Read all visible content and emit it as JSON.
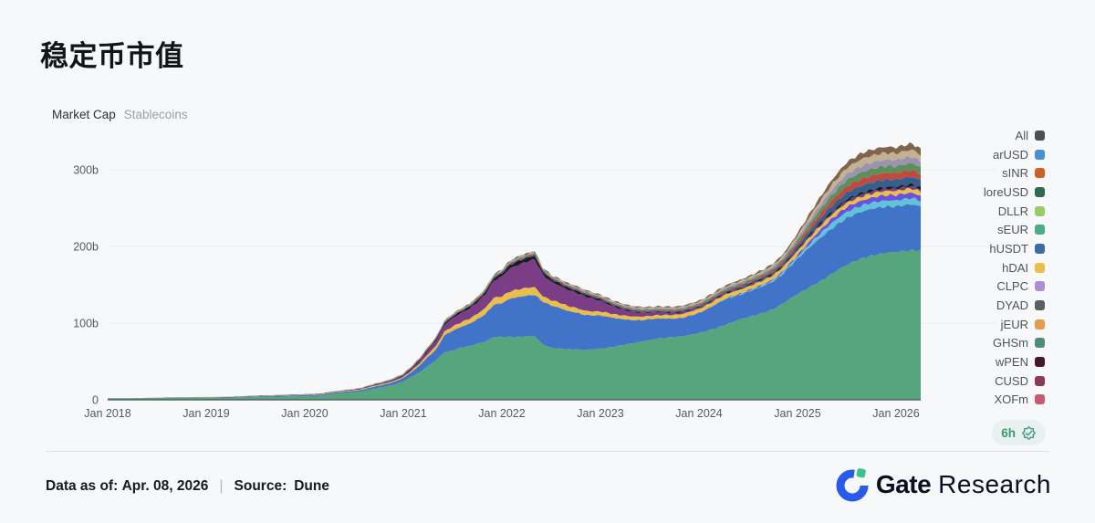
{
  "page": {
    "title": "稳定币市值"
  },
  "chart_header": {
    "primary": "Market Cap",
    "secondary": "Stablecoins"
  },
  "refresh_badge": {
    "label": "6h",
    "icon": "verified-check-icon",
    "color": "#3d9970"
  },
  "legend": {
    "items": [
      {
        "label": "All",
        "color": "#4a4f54"
      },
      {
        "label": "arUSD",
        "color": "#4a8fd4"
      },
      {
        "label": "sINR",
        "color": "#cd5f28"
      },
      {
        "label": "loreUSD",
        "color": "#2e6b4f"
      },
      {
        "label": "DLLR",
        "color": "#97cd68"
      },
      {
        "label": "sEUR",
        "color": "#47ad85"
      },
      {
        "label": "hUSDT",
        "color": "#3a6ca6"
      },
      {
        "label": "hDAI",
        "color": "#e9bf4a"
      },
      {
        "label": "CLPC",
        "color": "#af8cd4"
      },
      {
        "label": "DYAD",
        "color": "#5b5f63"
      },
      {
        "label": "jEUR",
        "color": "#e59a4d"
      },
      {
        "label": "GHSm",
        "color": "#4e8d77"
      },
      {
        "label": "wPEN",
        "color": "#45182c"
      },
      {
        "label": "CUSD",
        "color": "#8e3a55"
      },
      {
        "label": "XOFm",
        "color": "#c75b72"
      }
    ]
  },
  "chart_data": {
    "type": "area",
    "subtype": "stacked_area_timeseries",
    "title": "Market Cap Stablecoins",
    "x_start": "2018-01",
    "x_end": "2026-04",
    "x_interval": "monthly",
    "x_tick_labels": [
      "Jan 2018",
      "Jan 2019",
      "Jan 2020",
      "Jan 2021",
      "Jan 2022",
      "Jan 2023",
      "Jan 2024",
      "Jan 2025",
      "Jan 2026"
    ],
    "y_ticks": [
      {
        "label": "0",
        "value": 0
      },
      {
        "label": "100b",
        "value": 100
      },
      {
        "label": "200b",
        "value": 200
      },
      {
        "label": "300b",
        "value": 300
      }
    ],
    "ylim": [
      0,
      390
    ],
    "unit": "b (USD billions)",
    "legend_position": "right",
    "grid": "horizontal-faint",
    "series": [
      {
        "name": "green-band",
        "color": "#57a57d",
        "values": [
          2,
          2,
          2,
          2.1,
          2.2,
          2.4,
          2.5,
          2.7,
          2.8,
          2.8,
          2.8,
          2.9,
          2.9,
          2.9,
          3,
          3,
          3.2,
          3.5,
          3.8,
          4,
          4,
          4.2,
          4.4,
          4.6,
          4.8,
          4.9,
          5.2,
          7,
          8,
          9,
          9.5,
          11,
          13.5,
          15.5,
          17.5,
          20,
          24,
          30,
          36,
          44,
          52,
          62,
          64,
          68,
          70,
          73,
          76,
          82,
          82,
          82,
          82,
          83,
          83,
          72,
          68,
          67,
          66,
          66,
          65,
          66,
          67,
          68,
          70,
          72,
          74,
          76,
          78,
          80,
          81,
          82,
          83,
          85,
          87,
          90,
          93,
          97,
          101,
          105,
          108,
          111,
          114,
          118,
          124,
          131,
          138,
          144,
          150,
          156,
          163,
          170,
          176,
          181,
          185,
          188,
          190,
          192,
          193,
          194,
          195,
          195
        ]
      },
      {
        "name": "blue-band",
        "color": "#4173c9",
        "values": [
          0.1,
          0.1,
          0.1,
          0.1,
          0.1,
          0.1,
          0.15,
          0.2,
          0.25,
          0.3,
          0.35,
          0.4,
          0.4,
          0.45,
          0.5,
          0.55,
          0.6,
          0.7,
          0.8,
          0.9,
          1,
          1.1,
          1.2,
          1.3,
          1.3,
          1.4,
          1.5,
          1.5,
          1.6,
          1.7,
          1.8,
          2,
          2.4,
          2.8,
          3.2,
          3.9,
          4.5,
          6,
          9,
          12,
          14,
          22,
          26,
          27,
          29,
          32,
          36,
          42,
          44,
          50,
          52,
          53,
          54,
          56,
          55,
          53,
          50,
          48,
          46,
          44,
          43,
          40,
          36,
          33,
          30,
          28,
          27,
          26,
          25,
          24,
          24,
          25,
          26,
          28,
          31,
          33,
          33,
          32,
          33,
          34,
          35,
          36,
          38,
          42,
          46,
          50,
          54,
          57,
          59,
          60,
          61,
          61,
          61,
          61,
          61,
          60,
          59,
          60,
          60,
          57
        ]
      },
      {
        "name": "cyan-band",
        "color": "#5fc4d8",
        "values": [
          0,
          0,
          0,
          0,
          0,
          0,
          0,
          0,
          0,
          0,
          0,
          0,
          0,
          0,
          0,
          0,
          0,
          0,
          0,
          0,
          0,
          0,
          0,
          0,
          0,
          0,
          0,
          0,
          0,
          0,
          0,
          0,
          0,
          0,
          0,
          0,
          0,
          0,
          0,
          0,
          0,
          0,
          0,
          0,
          0,
          0,
          0,
          0,
          0,
          0,
          0,
          0,
          0,
          0,
          0,
          0,
          0,
          0,
          0,
          0,
          0,
          0,
          0,
          0,
          0,
          0,
          0,
          0,
          0,
          0,
          0,
          0,
          0.2,
          0.3,
          0.4,
          0.6,
          0.8,
          1,
          1.2,
          1.4,
          1.6,
          1.8,
          2,
          2.5,
          3,
          4,
          5,
          6,
          7,
          7.5,
          8,
          8,
          8,
          8,
          8,
          8,
          8,
          8,
          8,
          7.5
        ]
      },
      {
        "name": "violet-band",
        "color": "#6a51e0",
        "values": [
          0,
          0,
          0,
          0,
          0,
          0,
          0,
          0,
          0,
          0,
          0,
          0,
          0,
          0,
          0,
          0,
          0,
          0,
          0,
          0,
          0,
          0,
          0,
          0,
          0,
          0,
          0,
          0,
          0,
          0,
          0,
          0,
          0,
          0,
          0,
          0,
          0,
          0,
          0,
          0,
          0,
          0,
          0,
          0,
          0,
          0,
          0,
          0,
          0,
          0,
          0,
          0,
          0,
          0,
          0,
          0,
          0,
          0,
          0,
          0,
          0,
          0,
          0,
          0,
          0,
          0,
          0,
          0,
          0,
          0,
          0,
          0,
          0.1,
          0.15,
          0.2,
          0.3,
          0.4,
          0.5,
          0.6,
          0.8,
          1,
          1.2,
          1.4,
          1.5,
          2,
          3,
          4,
          5,
          5.5,
          6,
          6.5,
          6.5,
          6.5,
          6.5,
          7,
          7,
          7,
          7,
          7,
          6.5
        ]
      },
      {
        "name": "yellow-band",
        "color": "#e9bf4a",
        "values": [
          0,
          0,
          0,
          0,
          0.05,
          0.05,
          0.1,
          0.1,
          0.1,
          0.15,
          0.15,
          0.2,
          0.2,
          0.22,
          0.25,
          0.28,
          0.3,
          0.32,
          0.34,
          0.36,
          0.38,
          0.4,
          0.42,
          0.45,
          0.5,
          0.55,
          0.6,
          0.65,
          0.7,
          0.8,
          0.9,
          1,
          1.1,
          1.2,
          1.25,
          1.3,
          1.3,
          2,
          2.5,
          3.5,
          4.5,
          5,
          5.5,
          6,
          6.5,
          7,
          8,
          9,
          9,
          9.5,
          10,
          10,
          10,
          7,
          7,
          7,
          6.5,
          6,
          5.5,
          5.2,
          5.2,
          5.1,
          5,
          4.8,
          4.6,
          4.5,
          4.4,
          4.5,
          4.6,
          4.8,
          5,
          5.2,
          5.3,
          5.4,
          5.4,
          5.3,
          5.2,
          5.1,
          5,
          5,
          5.1,
          5.2,
          5.3,
          5.4,
          5.4,
          5.3,
          5.2,
          5.2,
          5.3,
          5.4,
          5.4,
          5.3,
          5.2,
          5.3,
          5.4,
          5.5,
          5.4,
          5.5,
          5.5,
          5.3
        ]
      },
      {
        "name": "purple-band",
        "color": "#7b3e86",
        "values": [
          0,
          0,
          0,
          0,
          0,
          0,
          0,
          0,
          0,
          0,
          0,
          0,
          0,
          0,
          0,
          0,
          0.05,
          0.05,
          0.1,
          0.1,
          0.15,
          0.15,
          0.2,
          0.2,
          0.2,
          0.25,
          0.3,
          0.35,
          0.4,
          0.5,
          0.6,
          0.7,
          0.8,
          0.9,
          1,
          1.2,
          1.5,
          2.5,
          3.5,
          5,
          7,
          9,
          11,
          12,
          13,
          15,
          18,
          22,
          26,
          30,
          32,
          34,
          36,
          28,
          24,
          22,
          21,
          20,
          19,
          17,
          14,
          11,
          9,
          7,
          6,
          5,
          4,
          3.5,
          3,
          2.5,
          2.2,
          2,
          1.8,
          1.6,
          1.5,
          1.4,
          1.3,
          1.3,
          1.2,
          1.2,
          1.2,
          1.3,
          1.3,
          1.4,
          1.5,
          1.6,
          1.8,
          2,
          2.2,
          2.4,
          2.5,
          2.6,
          2.7,
          2.8,
          2.9,
          3,
          3,
          3.1,
          3.1,
          3
        ]
      },
      {
        "name": "black-band",
        "color": "#1b1d20",
        "values": [
          0,
          0,
          0,
          0,
          0,
          0,
          0,
          0,
          0,
          0,
          0,
          0,
          0,
          0,
          0,
          0,
          0,
          0,
          0,
          0,
          0,
          0,
          0,
          0,
          0,
          0,
          0,
          0.05,
          0.1,
          0.15,
          0.2,
          0.3,
          0.4,
          0.5,
          0.6,
          0.8,
          1,
          1.2,
          1.4,
          1.6,
          1.8,
          2,
          2.2,
          2.4,
          2.6,
          2.8,
          3,
          3.5,
          4,
          4.5,
          5,
          5,
          5,
          4,
          3.5,
          3.2,
          3,
          2.8,
          2.5,
          2.2,
          2,
          1.8,
          1.5,
          1.2,
          1,
          0.9,
          0.8,
          0.8,
          0.7,
          0.7,
          0.7,
          0.7,
          0.7,
          0.7,
          0.8,
          0.8,
          0.9,
          0.9,
          1,
          1,
          1.1,
          1.2,
          1.3,
          1.4,
          1.5,
          1.7,
          1.9,
          2,
          2.1,
          2.2,
          2.3,
          2.3,
          2.4,
          2.4,
          2.5,
          2.5,
          2.5,
          2.5,
          2.5,
          2.5
        ]
      }
    ],
    "others_band": {
      "name": "others-thin-stripes",
      "values": [
        0.1,
        0.1,
        0.1,
        0.1,
        0.1,
        0.12,
        0.13,
        0.14,
        0.15,
        0.16,
        0.17,
        0.18,
        0.2,
        0.22,
        0.24,
        0.26,
        0.28,
        0.3,
        0.33,
        0.36,
        0.4,
        0.44,
        0.48,
        0.5,
        0.5,
        0.55,
        0.6,
        0.7,
        0.8,
        0.9,
        1,
        1.1,
        1.3,
        1.5,
        1.7,
        1.9,
        2,
        2.2,
        2.5,
        2.8,
        3,
        3.2,
        3.4,
        3.6,
        3.8,
        4,
        4.5,
        5,
        5,
        5.5,
        6,
        6,
        6,
        5.5,
        5.5,
        5.5,
        5.8,
        6,
        6,
        6,
        6,
        6.2,
        6.4,
        6.5,
        6.6,
        6.8,
        7,
        7.2,
        7.4,
        7.6,
        7.8,
        8,
        8,
        8.5,
        9,
        9.5,
        10,
        10.5,
        11,
        11.5,
        12,
        13,
        14,
        16,
        20,
        25,
        30,
        35,
        40,
        44,
        48,
        50,
        52,
        52,
        52,
        52,
        51,
        52,
        53,
        50
      ],
      "stripe_colors": [
        "#33608c",
        "#bf4a3f",
        "#5d8f5d",
        "#9b94b0",
        "#c2b292",
        "#82644c"
      ],
      "stripe_proportions": [
        0.18,
        0.17,
        0.17,
        0.16,
        0.17,
        0.15
      ]
    }
  },
  "footer": {
    "data_as_of_label": "Data as of:",
    "data_as_of_value": "Apr. 08, 2026",
    "separator": "|",
    "source_label": "Source:",
    "source_value": "Dune",
    "brand": {
      "bold": "Gate",
      "light": "Research"
    }
  }
}
